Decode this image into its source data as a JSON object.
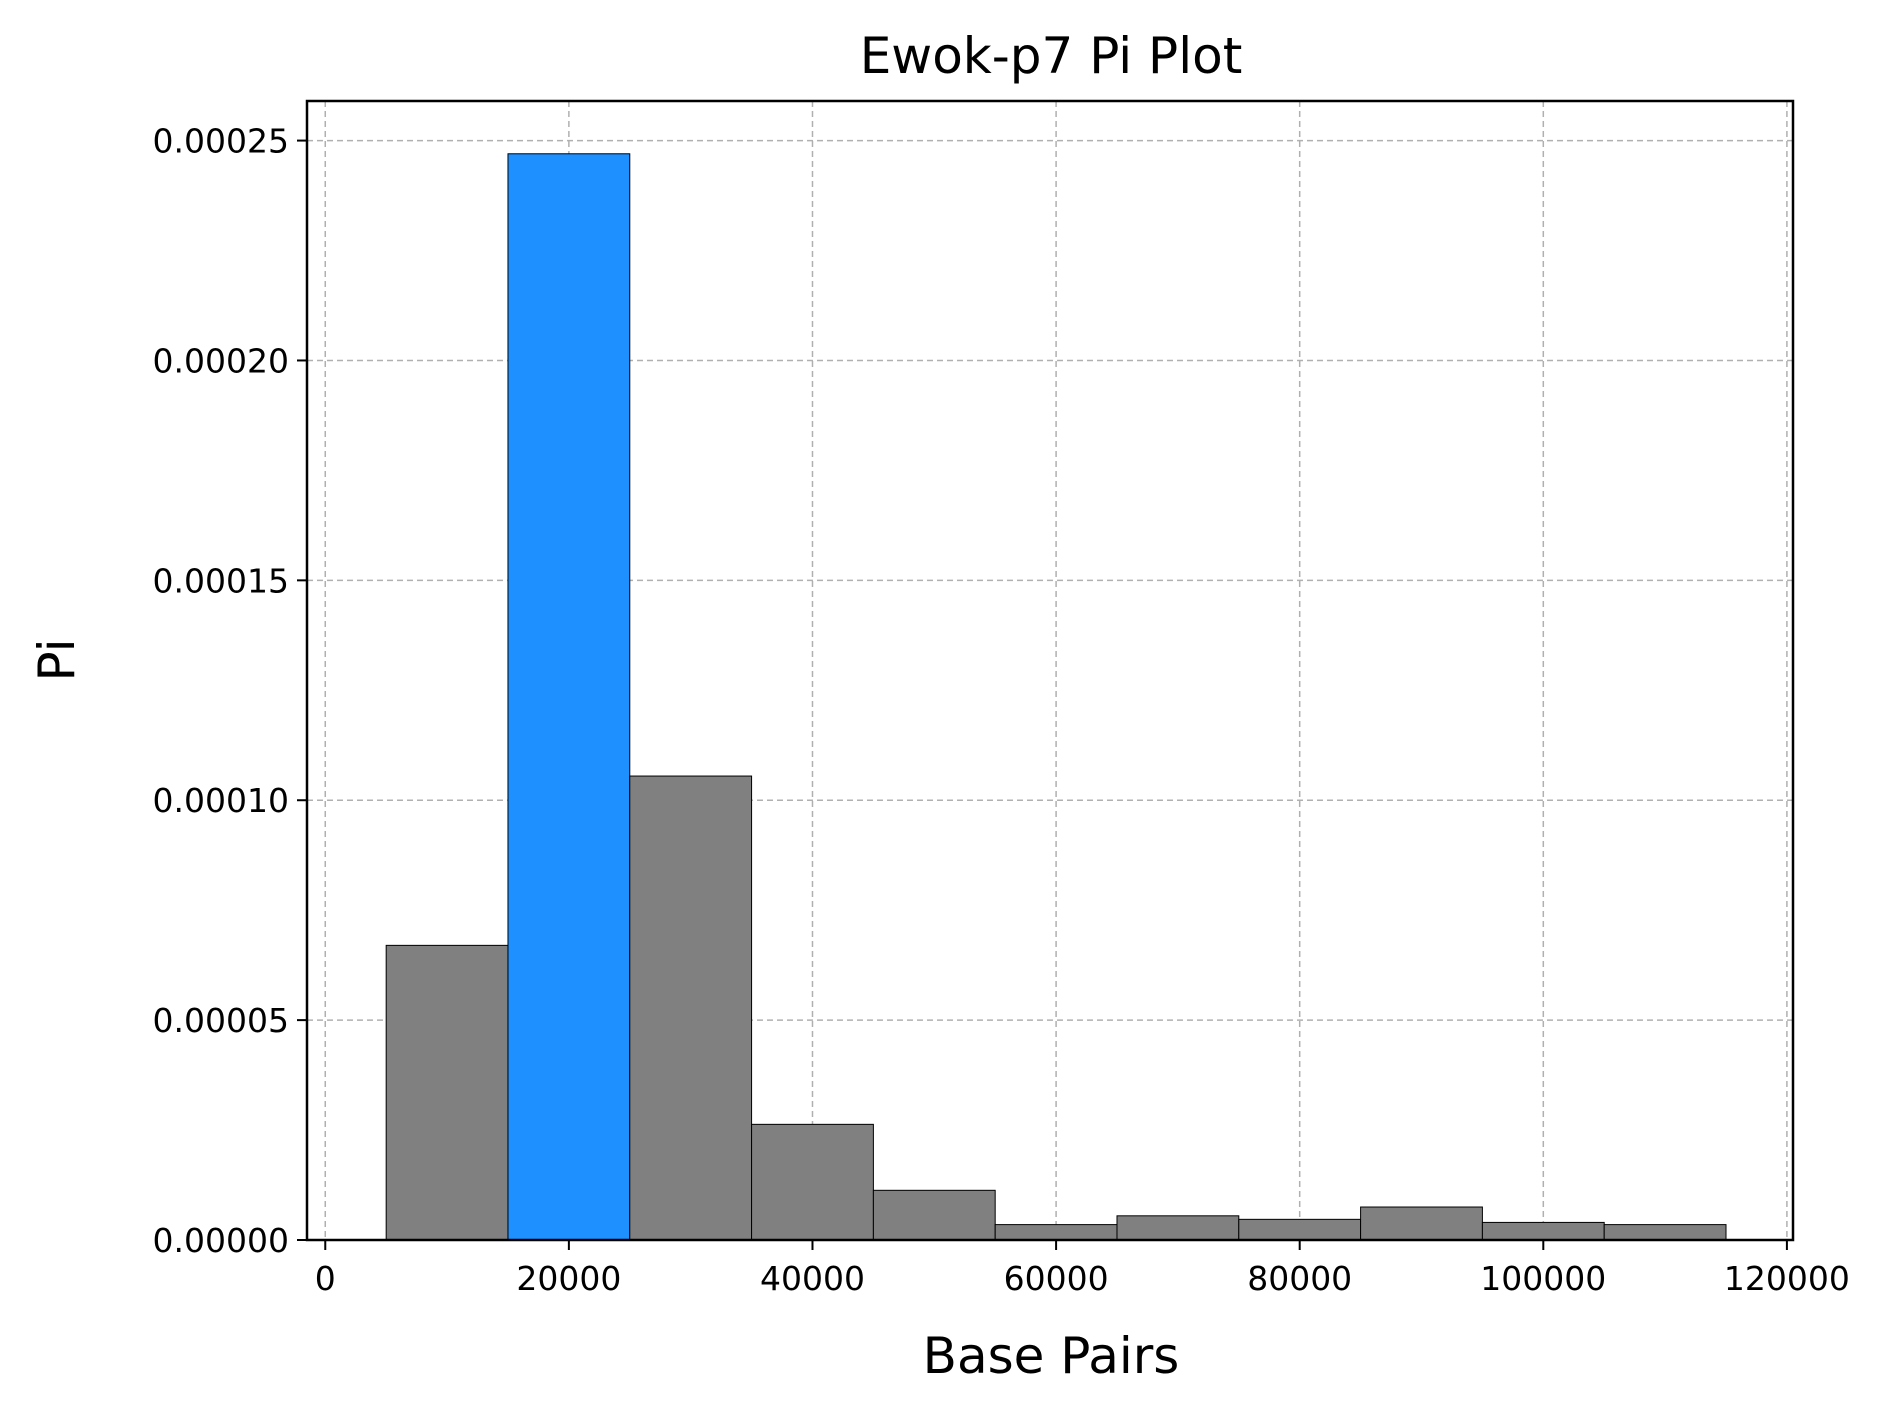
{
  "chart_data": {
    "type": "bar",
    "title": "Ewok-p7 Pi Plot",
    "xlabel": "Base Pairs",
    "ylabel": "Pi",
    "xlim": [
      -1500,
      120500
    ],
    "ylim": [
      0,
      0.000259
    ],
    "x_ticks": [
      "0",
      "20000",
      "40000",
      "60000",
      "80000",
      "100000",
      "120000"
    ],
    "y_ticks": [
      "0.00000",
      "0.00005",
      "0.00010",
      "0.00015",
      "0.00020",
      "0.00025"
    ],
    "grid": true,
    "bin_width": 10000,
    "bars": [
      {
        "x_start": 5000,
        "x_end": 15000,
        "value": 6.7e-05,
        "color": "#808080"
      },
      {
        "x_start": 15000,
        "x_end": 25000,
        "value": 0.000247,
        "color": "#1e90ff"
      },
      {
        "x_start": 25000,
        "x_end": 35000,
        "value": 0.0001055,
        "color": "#808080"
      },
      {
        "x_start": 35000,
        "x_end": 45000,
        "value": 2.63e-05,
        "color": "#808080"
      },
      {
        "x_start": 45000,
        "x_end": 55000,
        "value": 1.13e-05,
        "color": "#808080"
      },
      {
        "x_start": 55000,
        "x_end": 65000,
        "value": 3.5e-06,
        "color": "#808080"
      },
      {
        "x_start": 65000,
        "x_end": 75000,
        "value": 5.5e-06,
        "color": "#808080"
      },
      {
        "x_start": 75000,
        "x_end": 85000,
        "value": 4.7e-06,
        "color": "#808080"
      },
      {
        "x_start": 85000,
        "x_end": 95000,
        "value": 7.5e-06,
        "color": "#808080"
      },
      {
        "x_start": 95000,
        "x_end": 105000,
        "value": 4e-06,
        "color": "#808080"
      },
      {
        "x_start": 105000,
        "x_end": 115000,
        "value": 3.5e-06,
        "color": "#808080"
      }
    ],
    "colors": {
      "highlight": "#1e90ff",
      "default": "#808080",
      "edge": "#000000",
      "grid": "#b0b0b0"
    }
  }
}
